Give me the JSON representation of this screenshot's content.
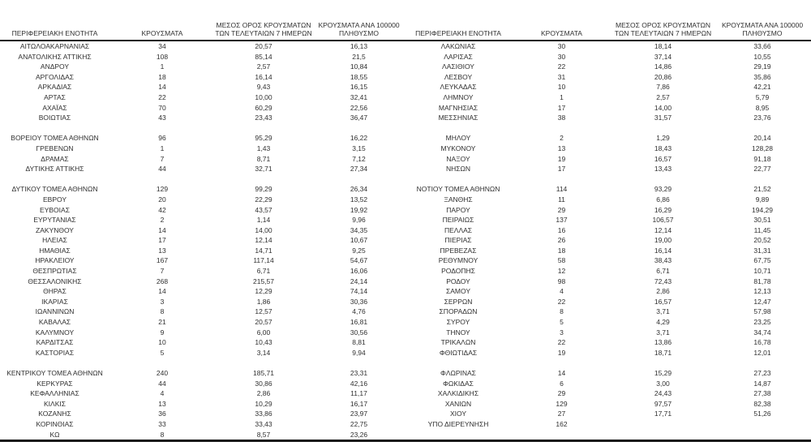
{
  "page": {
    "background_color": "#ffffff",
    "text_color": "#303030",
    "rule_color": "#1a1a1a"
  },
  "table": {
    "headers": [
      "ΠΕΡΙΦΕΡΕΙΑΚΗ ΕΝΟΤΗΤΑ",
      "ΚΡΟΥΣΜΑΤΑ",
      "ΜΕΣΟΣ ΟΡΟΣ ΚΡΟΥΣΜΑΤΩΝ\nΤΩΝ ΤΕΛΕΥΤΑΙΩΝ 7 ΗΜΕΡΩΝ",
      "ΚΡΟΥΣΜΑΤΑ ΑΝΑ 100000\nΠΛΗΘΥΣΜΟ"
    ],
    "left_rows": [
      [
        "ΑΙΤΩΛΟΑΚΑΡΝΑΝΙΑΣ",
        "34",
        "20,57",
        "16,13"
      ],
      [
        "ΑΝΑΤΟΛΙΚΗΣ ΑΤΤΙΚΗΣ",
        "108",
        "85,14",
        "21,5"
      ],
      [
        "ΑΝΔΡΟΥ",
        "1",
        "2,57",
        "10,84"
      ],
      [
        "ΑΡΓΟΛΙΔΑΣ",
        "18",
        "16,14",
        "18,55"
      ],
      [
        "ΑΡΚΑΔΙΑΣ",
        "14",
        "9,43",
        "16,15"
      ],
      [
        "ΑΡΤΑΣ",
        "22",
        "10,00",
        "32,41"
      ],
      [
        "ΑΧΑΪΑΣ",
        "70",
        "60,29",
        "22,56"
      ],
      [
        "ΒΟΙΩΤΙΑΣ",
        "43",
        "23,43",
        "36,47"
      ],
      null,
      [
        "ΒΟΡΕΙΟΥ ΤΟΜΕΑ ΑΘΗΝΩΝ",
        "96",
        "95,29",
        "16,22"
      ],
      [
        "ΓΡΕΒΕΝΩΝ",
        "1",
        "1,43",
        "3,15"
      ],
      [
        "ΔΡΑΜΑΣ",
        "7",
        "8,71",
        "7,12"
      ],
      [
        "ΔΥΤΙΚΗΣ ΑΤΤΙΚΗΣ",
        "44",
        "32,71",
        "27,34"
      ],
      null,
      [
        "ΔΥΤΙΚΟΥ ΤΟΜΕΑ ΑΘΗΝΩΝ",
        "129",
        "99,29",
        "26,34"
      ],
      [
        "ΕΒΡΟΥ",
        "20",
        "22,29",
        "13,52"
      ],
      [
        "ΕΥΒΟΙΑΣ",
        "42",
        "43,57",
        "19,92"
      ],
      [
        "ΕΥΡΥΤΑΝΙΑΣ",
        "2",
        "1,14",
        "9,96"
      ],
      [
        "ΖΑΚΥΝΘΟΥ",
        "14",
        "14,00",
        "34,35"
      ],
      [
        "ΗΛΕΙΑΣ",
        "17",
        "12,14",
        "10,67"
      ],
      [
        "ΗΜΑΘΙΑΣ",
        "13",
        "14,71",
        "9,25"
      ],
      [
        "ΗΡΑΚΛΕΙΟΥ",
        "167",
        "117,14",
        "54,67"
      ],
      [
        "ΘΕΣΠΡΩΤΙΑΣ",
        "7",
        "6,71",
        "16,06"
      ],
      [
        "ΘΕΣΣΑΛΟΝΙΚΗΣ",
        "268",
        "215,57",
        "24,14"
      ],
      [
        "ΘΗΡΑΣ",
        "14",
        "12,29",
        "74,14"
      ],
      [
        "ΙΚΑΡΙΑΣ",
        "3",
        "1,86",
        "30,36"
      ],
      [
        "ΙΩΑΝΝΙΝΩΝ",
        "8",
        "12,57",
        "4,76"
      ],
      [
        "ΚΑΒΑΛΑΣ",
        "21",
        "20,57",
        "16,81"
      ],
      [
        "ΚΑΛΥΜΝΟΥ",
        "9",
        "6,00",
        "30,56"
      ],
      [
        "ΚΑΡΔΙΤΣΑΣ",
        "10",
        "10,43",
        "8,81"
      ],
      [
        "ΚΑΣΤΟΡΙΑΣ",
        "5",
        "3,14",
        "9,94"
      ],
      null,
      [
        "ΚΕΝΤΡΙΚΟΥ ΤΟΜΕΑ ΑΘΗΝΩΝ",
        "240",
        "185,71",
        "23,31"
      ],
      [
        "ΚΕΡΚΥΡΑΣ",
        "44",
        "30,86",
        "42,16"
      ],
      [
        "ΚΕΦΑΛΛΗΝΙΑΣ",
        "4",
        "2,86",
        "11,17"
      ],
      [
        "ΚΙΛΚΙΣ",
        "13",
        "10,29",
        "16,17"
      ],
      [
        "ΚΟΖΑΝΗΣ",
        "36",
        "33,86",
        "23,97"
      ],
      [
        "ΚΟΡΙΝΘΙΑΣ",
        "33",
        "33,43",
        "22,75"
      ],
      [
        "ΚΩ",
        "8",
        "8,57",
        "23,26"
      ]
    ],
    "right_rows": [
      [
        "ΛΑΚΩΝΙΑΣ",
        "30",
        "18,14",
        "33,66"
      ],
      [
        "ΛΑΡΙΣΑΣ",
        "30",
        "37,14",
        "10,55"
      ],
      [
        "ΛΑΣΙΘΙΟΥ",
        "22",
        "14,86",
        "29,19"
      ],
      [
        "ΛΕΣΒΟΥ",
        "31",
        "20,86",
        "35,86"
      ],
      [
        "ΛΕΥΚΑΔΑΣ",
        "10",
        "7,86",
        "42,21"
      ],
      [
        "ΛΗΜΝΟΥ",
        "1",
        "2,57",
        "5,79"
      ],
      [
        "ΜΑΓΝΗΣΙΑΣ",
        "17",
        "14,00",
        "8,95"
      ],
      [
        "ΜΕΣΣΗΝΙΑΣ",
        "38",
        "31,57",
        "23,76"
      ],
      null,
      [
        "ΜΗΛΟΥ",
        "2",
        "1,29",
        "20,14"
      ],
      [
        "ΜΥΚΟΝΟΥ",
        "13",
        "18,43",
        "128,28"
      ],
      [
        "ΝΑΞΟΥ",
        "19",
        "16,57",
        "91,18"
      ],
      [
        "ΝΗΣΩΝ",
        "17",
        "13,43",
        "22,77"
      ],
      null,
      [
        "ΝΟΤΙΟΥ ΤΟΜΕΑ ΑΘΗΝΩΝ",
        "114",
        "93,29",
        "21,52"
      ],
      [
        "ΞΑΝΘΗΣ",
        "11",
        "6,86",
        "9,89"
      ],
      [
        "ΠΑΡΟΥ",
        "29",
        "16,29",
        "194,29"
      ],
      [
        "ΠΕΙΡΑΙΩΣ",
        "137",
        "106,57",
        "30,51"
      ],
      [
        "ΠΕΛΛΑΣ",
        "16",
        "12,14",
        "11,45"
      ],
      [
        "ΠΙΕΡΙΑΣ",
        "26",
        "19,00",
        "20,52"
      ],
      [
        "ΠΡΕΒΕΖΑΣ",
        "18",
        "16,14",
        "31,31"
      ],
      [
        "ΡΕΘΥΜΝΟΥ",
        "58",
        "38,43",
        "67,75"
      ],
      [
        "ΡΟΔΟΠΗΣ",
        "12",
        "6,71",
        "10,71"
      ],
      [
        "ΡΟΔΟΥ",
        "98",
        "72,43",
        "81,78"
      ],
      [
        "ΣΑΜΟΥ",
        "4",
        "2,86",
        "12,13"
      ],
      [
        "ΣΕΡΡΩΝ",
        "22",
        "16,57",
        "12,47"
      ],
      [
        "ΣΠΟΡΑΔΩΝ",
        "8",
        "3,71",
        "57,98"
      ],
      [
        "ΣΥΡΟΥ",
        "5",
        "4,29",
        "23,25"
      ],
      [
        "ΤΗΝΟΥ",
        "3",
        "3,71",
        "34,74"
      ],
      [
        "ΤΡΙΚΑΛΩΝ",
        "22",
        "13,86",
        "16,78"
      ],
      [
        "ΦΘΙΩΤΙΔΑΣ",
        "19",
        "18,71",
        "12,01"
      ],
      null,
      [
        "ΦΛΩΡΙΝΑΣ",
        "14",
        "15,29",
        "27,23"
      ],
      [
        "ΦΩΚΙΔΑΣ",
        "6",
        "3,00",
        "14,87"
      ],
      [
        "ΧΑΛΚΙΔΙΚΗΣ",
        "29",
        "24,43",
        "27,38"
      ],
      [
        "ΧΑΝΙΩΝ",
        "129",
        "97,57",
        "82,38"
      ],
      [
        "ΧΙΟΥ",
        "27",
        "17,71",
        "51,26"
      ],
      [
        "ΥΠΟ ΔΙΕΡΕΥΝΗΣΗ",
        "162",
        "",
        ""
      ],
      null
    ]
  }
}
